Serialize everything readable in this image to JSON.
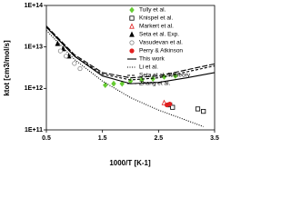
{
  "chart_data": {
    "type": "line",
    "xlabel": "1000/T [K-1]",
    "ylabel": "ktot [cm3/mol/s]",
    "xlim": [
      0.5,
      3.5
    ],
    "xticks": [
      0.5,
      1.5,
      2.5,
      3.5
    ],
    "ylim": [
      100000000000.0,
      100000000000000.0
    ],
    "yscale": "log",
    "yticks": [
      {
        "value": 100000000000.0,
        "label": "1E+11"
      },
      {
        "value": 1000000000000.0,
        "label": "1E+12"
      },
      {
        "value": 10000000000000.0,
        "label": "1E+13"
      },
      {
        "value": 100000000000000.0,
        "label": "1E+14"
      }
    ],
    "legend": "upper right",
    "series": [
      {
        "name": "Tully et al.",
        "color": "#66cc33",
        "marker": "diamond",
        "fill": true,
        "x": [
          1.55,
          1.7,
          1.85,
          2.0,
          2.2,
          2.4,
          2.6,
          2.8
        ],
        "values": [
          1200000000000.0,
          1300000000000.0,
          1300000000000.0,
          1500000000000.0,
          1600000000000.0,
          1700000000000.0,
          1900000000000.0,
          2000000000000.0
        ]
      },
      {
        "name": "Knispel et al.",
        "color": "#000000",
        "marker": "square",
        "fill": false,
        "x": [
          2.7,
          2.75,
          3.2,
          3.3
        ],
        "values": [
          400000000000.0,
          350000000000.0,
          320000000000.0,
          280000000000.0
        ]
      },
      {
        "name": "Markert et al.",
        "color": "#e02020",
        "marker": "triangle",
        "fill": false,
        "x": [
          2.6
        ],
        "values": [
          450000000000.0
        ]
      },
      {
        "name": "Seta et al. Exp.",
        "color": "#000000",
        "marker": "triangle",
        "fill": true,
        "x": [
          0.7,
          0.8,
          0.9
        ],
        "values": [
          12000000000000.0,
          9000000000000.0,
          6000000000000.0
        ]
      },
      {
        "name": "Vasudevan et al.",
        "color": "#888888",
        "marker": "circle",
        "fill": false,
        "x": [
          0.75,
          0.85,
          1.0,
          1.1
        ],
        "values": [
          8000000000000.0,
          6000000000000.0,
          4000000000000.0,
          3000000000000.0
        ]
      },
      {
        "name": "Perry & Atkinson",
        "color": "#e02020",
        "marker": "circle",
        "fill": true,
        "x": [
          2.65,
          2.7
        ],
        "values": [
          400000000000.0,
          420000000000.0
        ]
      },
      {
        "name": "This work",
        "color": "#000000",
        "dash": "solid",
        "x": [
          0.5,
          1,
          1.5,
          2,
          2.5,
          3,
          3.5
        ],
        "values": [
          30000000000000.0,
          6000000000000.0,
          2000000000000.0,
          1300000000000.0,
          1400000000000.0,
          1800000000000.0,
          2400000000000.0
        ]
      },
      {
        "name": "Li et al.",
        "color": "#000000",
        "dash": "dotted",
        "x": [
          0.5,
          1,
          1.5,
          2,
          2.5,
          3,
          3.3
        ],
        "values": [
          25000000000000.0,
          5000000000000.0,
          1500000000000.0,
          600000000000.0,
          300000000000.0,
          170000000000.0,
          120000000000.0
        ]
      },
      {
        "name": "Seta et al. fit/theory",
        "color": "#000000",
        "dash": "dashed",
        "x": [
          0.5,
          1,
          1.5,
          2,
          2.5,
          3,
          3.5
        ],
        "values": [
          30000000000000.0,
          6000000000000.0,
          2200000000000.0,
          1600000000000.0,
          1800000000000.0,
          2500000000000.0,
          3500000000000.0
        ]
      },
      {
        "name": "Zhang et al.",
        "color": "#000000",
        "dash": "longdash",
        "x": [
          0.5,
          1,
          1.5,
          2,
          2.5,
          3,
          3.5
        ],
        "values": [
          32000000000000.0,
          6500000000000.0,
          2400000000000.0,
          1800000000000.0,
          2000000000000.0,
          2800000000000.0,
          3900000000000.0
        ]
      }
    ]
  }
}
